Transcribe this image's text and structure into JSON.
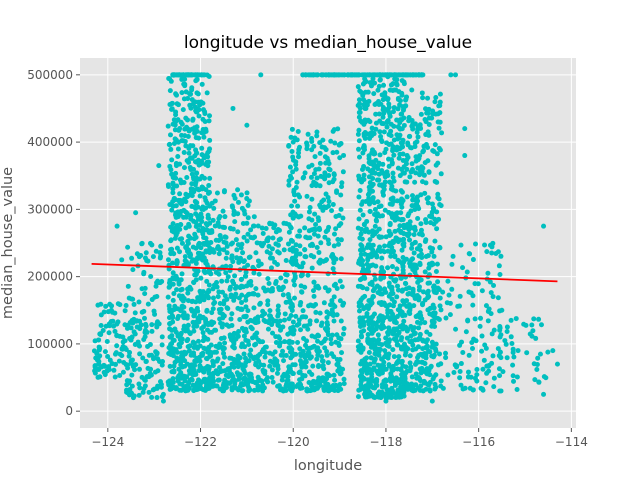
{
  "chart_data": {
    "type": "scatter",
    "title": "longitude vs median_house_value",
    "xlabel": "longitude",
    "ylabel": "median_house_value",
    "xlim": [
      -124.6,
      -113.9
    ],
    "ylim": [
      -25000,
      525000
    ],
    "xticks": [
      -124,
      -122,
      -120,
      -118,
      -116,
      -114
    ],
    "yticks": [
      0,
      100000,
      200000,
      300000,
      400000,
      500000
    ],
    "grid": true,
    "point_color": "#00bfbf",
    "line_color": "#ff0000",
    "background_color": "#e5e5e5",
    "regression_line": {
      "x": [
        -124.35,
        -114.3
      ],
      "y": [
        219000,
        193000
      ]
    },
    "clusters": [
      {
        "x": [
          -124.3,
          -123.6
        ],
        "y": [
          50000,
          160000
        ],
        "n": 90
      },
      {
        "x": [
          -123.6,
          -122.8
        ],
        "y": [
          20000,
          250000
        ],
        "n": 160
      },
      {
        "x": [
          -122.7,
          -121.8
        ],
        "y": [
          30000,
          500000
        ],
        "n": 700
      },
      {
        "x": [
          -121.9,
          -120.8
        ],
        "y": [
          30000,
          330000
        ],
        "n": 420
      },
      {
        "x": [
          -120.8,
          -120.0
        ],
        "y": [
          30000,
          280000
        ],
        "n": 220
      },
      {
        "x": [
          -120.1,
          -118.9
        ],
        "y": [
          30000,
          420000
        ],
        "n": 480
      },
      {
        "x": [
          -118.6,
          -117.6
        ],
        "y": [
          20000,
          500000
        ],
        "n": 900
      },
      {
        "x": [
          -117.6,
          -116.8
        ],
        "y": [
          30000,
          480000
        ],
        "n": 450
      },
      {
        "x": [
          -116.8,
          -115.5
        ],
        "y": [
          30000,
          250000
        ],
        "n": 120
      },
      {
        "x": [
          -115.6,
          -114.5
        ],
        "y": [
          30000,
          140000
        ],
        "n": 45
      },
      {
        "x": [
          -122.6,
          -121.9
        ],
        "y": [
          500000,
          500000
        ],
        "n": 50
      },
      {
        "x": [
          -119.8,
          -118.6
        ],
        "y": [
          500000,
          500000
        ],
        "n": 60
      },
      {
        "x": [
          -118.6,
          -117.2
        ],
        "y": [
          500000,
          500000
        ],
        "n": 80
      }
    ],
    "points": [
      {
        "x": -124.2,
        "y": 70000
      },
      {
        "x": -124.1,
        "y": 120000
      },
      {
        "x": -123.8,
        "y": 275000
      },
      {
        "x": -123.7,
        "y": 225000
      },
      {
        "x": -123.4,
        "y": 295000
      },
      {
        "x": -122.9,
        "y": 365000
      },
      {
        "x": -122.8,
        "y": 15000
      },
      {
        "x": -121.3,
        "y": 450000
      },
      {
        "x": -121.0,
        "y": 425000
      },
      {
        "x": -120.7,
        "y": 500000
      },
      {
        "x": -120.0,
        "y": 400000
      },
      {
        "x": -118.0,
        "y": 15000
      },
      {
        "x": -117.0,
        "y": 15000
      },
      {
        "x": -116.6,
        "y": 500000
      },
      {
        "x": -116.5,
        "y": 500000
      },
      {
        "x": -116.3,
        "y": 420000
      },
      {
        "x": -116.3,
        "y": 380000
      },
      {
        "x": -115.8,
        "y": 205000
      },
      {
        "x": -115.5,
        "y": 150000
      },
      {
        "x": -115.3,
        "y": 135000
      },
      {
        "x": -114.6,
        "y": 275000
      },
      {
        "x": -114.4,
        "y": 90000
      },
      {
        "x": -114.3,
        "y": 70000
      },
      {
        "x": -114.6,
        "y": 25000
      }
    ]
  }
}
